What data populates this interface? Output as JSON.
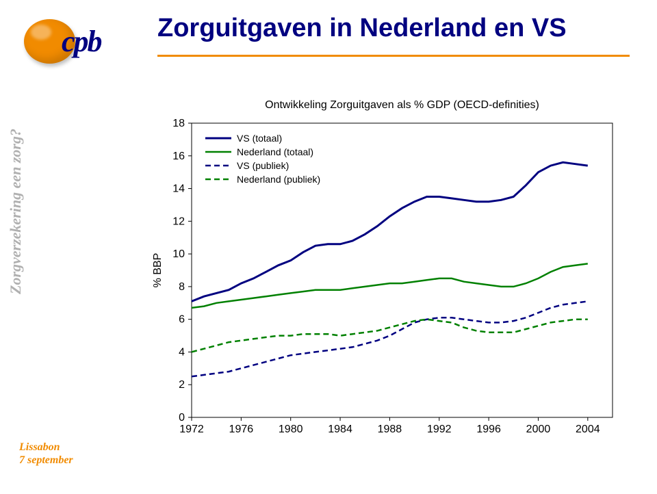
{
  "title": "Zorguitgaven in Nederland en VS",
  "logo_text": "cpb",
  "brand_color": "#000080",
  "accent_color": "#f18b00",
  "sidebar": {
    "rotated_text": "Zorgverzekering een zorg?",
    "footer_line1": "Lissabon",
    "footer_line2": "7 september"
  },
  "chart": {
    "type": "line",
    "title": "Ontwikkeling Zorguitgaven als % GDP (OECD-definities)",
    "title_fontsize": 16,
    "x_label": "",
    "y_label": "% BBP",
    "label_fontsize": 16,
    "background_color": "#ffffff",
    "border_color": "#000000",
    "legend_position": "top-left",
    "x_categories": [
      "1972",
      "1976",
      "1980",
      "1984",
      "1988",
      "1992",
      "1996",
      "2000",
      "2004"
    ],
    "x_step_years": 4,
    "x_start": 1972,
    "x_end": 2006,
    "ylim": [
      0,
      18
    ],
    "ytick_step": 2,
    "series": [
      {
        "name": "VS (totaal)",
        "color": "#000080",
        "dash": "solid",
        "width": 3,
        "values": [
          7.1,
          7.4,
          7.6,
          7.8,
          8.2,
          8.5,
          8.9,
          9.3,
          9.6,
          10.1,
          10.5,
          10.6,
          10.6,
          10.8,
          11.2,
          11.7,
          12.3,
          12.8,
          13.2,
          13.5,
          13.5,
          13.4,
          13.3,
          13.2,
          13.2,
          13.3,
          13.5,
          14.2,
          15.0,
          15.4,
          15.6,
          15.5,
          15.4
        ]
      },
      {
        "name": "Nederland (totaal)",
        "color": "#008000",
        "dash": "solid",
        "width": 2.5,
        "values": [
          6.7,
          6.8,
          7.0,
          7.1,
          7.2,
          7.3,
          7.4,
          7.5,
          7.6,
          7.7,
          7.8,
          7.8,
          7.8,
          7.9,
          8.0,
          8.1,
          8.2,
          8.2,
          8.3,
          8.4,
          8.5,
          8.5,
          8.3,
          8.2,
          8.1,
          8.0,
          8.0,
          8.2,
          8.5,
          8.9,
          9.2,
          9.3,
          9.4
        ]
      },
      {
        "name": "VS (publiek)",
        "color": "#000080",
        "dash": "8,5",
        "width": 2.5,
        "values": [
          2.5,
          2.6,
          2.7,
          2.8,
          3.0,
          3.2,
          3.4,
          3.6,
          3.8,
          3.9,
          4.0,
          4.1,
          4.2,
          4.3,
          4.5,
          4.7,
          5.0,
          5.4,
          5.8,
          6.0,
          6.1,
          6.1,
          6.0,
          5.9,
          5.8,
          5.8,
          5.9,
          6.1,
          6.4,
          6.7,
          6.9,
          7.0,
          7.1
        ]
      },
      {
        "name": "Nederland (publiek)",
        "color": "#008000",
        "dash": "8,5",
        "width": 2.5,
        "values": [
          4.0,
          4.2,
          4.4,
          4.6,
          4.7,
          4.8,
          4.9,
          5.0,
          5.0,
          5.1,
          5.1,
          5.1,
          5.0,
          5.1,
          5.2,
          5.3,
          5.5,
          5.7,
          5.9,
          6.0,
          5.9,
          5.8,
          5.5,
          5.3,
          5.2,
          5.2,
          5.2,
          5.4,
          5.6,
          5.8,
          5.9,
          6.0,
          6.0
        ]
      }
    ]
  }
}
